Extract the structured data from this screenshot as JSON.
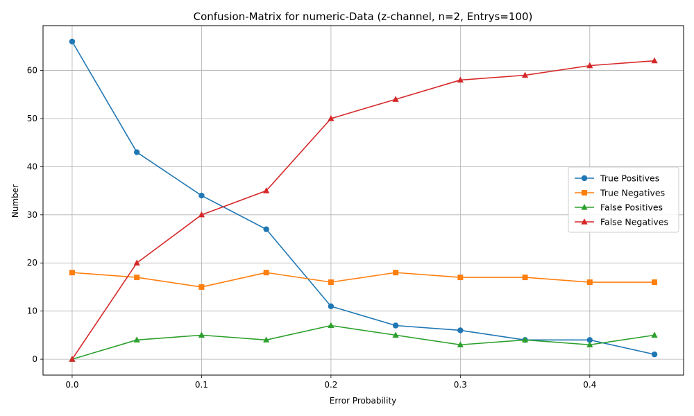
{
  "chart_data": {
    "type": "line",
    "title": "Confusion-Matrix for numeric-Data (z-channel, n=2, Entrys=100)",
    "xlabel": "Error Probability",
    "ylabel": "Number",
    "x": [
      0.0,
      0.05,
      0.1,
      0.15,
      0.2,
      0.25,
      0.3,
      0.35,
      0.4,
      0.45
    ],
    "xlim": [
      -0.0225,
      0.4725
    ],
    "ylim": [
      -3.3,
      69.3
    ],
    "xticks": [
      0.0,
      0.1,
      0.2,
      0.3,
      0.4
    ],
    "xtick_labels": [
      "0.0",
      "0.1",
      "0.2",
      "0.3",
      "0.4"
    ],
    "yticks": [
      0,
      10,
      20,
      30,
      40,
      50,
      60
    ],
    "ytick_labels": [
      "0",
      "10",
      "20",
      "30",
      "40",
      "50",
      "60"
    ],
    "grid": true,
    "legend_position": "center-right",
    "series": [
      {
        "name": "True Positives",
        "color": "#1f77b4",
        "marker": "circle",
        "values": [
          66,
          43,
          34,
          27,
          11,
          7,
          6,
          4,
          4,
          1
        ]
      },
      {
        "name": "True Negatives",
        "color": "#ff7f0e",
        "marker": "square",
        "values": [
          18,
          17,
          15,
          18,
          16,
          18,
          17,
          17,
          16,
          16
        ]
      },
      {
        "name": "False Positives",
        "color": "#2ca02c",
        "marker": "triangle",
        "values": [
          0,
          4,
          5,
          4,
          7,
          5,
          3,
          4,
          3,
          5
        ]
      },
      {
        "name": "False Negatives",
        "color": "#d62728",
        "marker": "triangle",
        "values": [
          0,
          20,
          30,
          35,
          50,
          54,
          58,
          59,
          61,
          62
        ]
      }
    ]
  }
}
